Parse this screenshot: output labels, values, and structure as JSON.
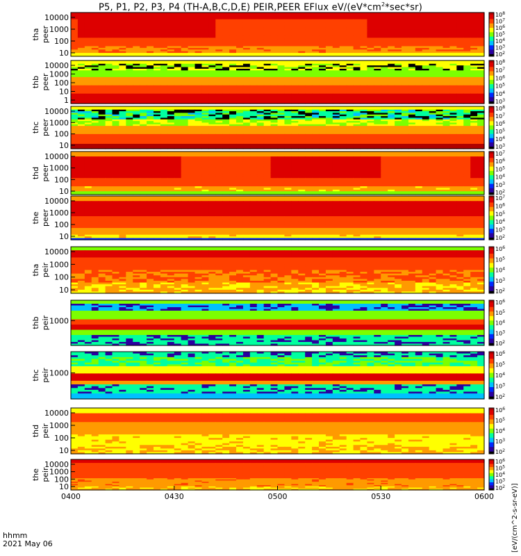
{
  "title": {
    "prefix": "P5, P1, P2, P3, P4 (TH-A,B,C,D,E) PEIR,PEER EFlux eV/(eV*cm",
    "sup": "2",
    "suffix": "*sec*sr)"
  },
  "footer": {
    "line1": "hhmm",
    "line2": "2021 May 06"
  },
  "colors": {
    "colormap": [
      "#000000",
      "#2a00a0",
      "#0028ff",
      "#00c0ff",
      "#00ffa0",
      "#7cff00",
      "#ffff00",
      "#ff9a00",
      "#ff4000",
      "#dd0000",
      "#b00000"
    ]
  },
  "chart_data": {
    "type": "heatmap",
    "x_axis": {
      "ticks": [
        "0400",
        "0430",
        "0500",
        "0530",
        "0600"
      ],
      "label_left": "hhmm",
      "date": "2021 May 06"
    },
    "colorbar_label": "[eV/(cm^2-s-sr-eV)]",
    "panels": [
      {
        "name": "tha_peer",
        "label": [
          "tha",
          "peer"
        ],
        "y_ticks": [
          "10",
          "100",
          "1000",
          "10000"
        ],
        "cbar_ticks": [
          "10^2",
          "10^3",
          "10^4",
          "10^5",
          "10^6",
          "10^7",
          "10^8"
        ],
        "pattern": "peer_a"
      },
      {
        "name": "thb_peer",
        "label": [
          "thb",
          "peer"
        ],
        "y_ticks": [
          "1",
          "10",
          "100",
          "1000",
          "10000"
        ],
        "cbar_ticks": [
          "10^3",
          "10^4",
          "10^5",
          "10^6",
          "10^7",
          "10^8"
        ],
        "pattern": "peer_b"
      },
      {
        "name": "thc_peer",
        "label": [
          "thc",
          "peer"
        ],
        "y_ticks": [
          "10",
          "100",
          "1000",
          "10000"
        ],
        "cbar_ticks": [
          "10^3",
          "10^4",
          "10^5",
          "10^6",
          "10^7",
          "10^8"
        ],
        "pattern": "peer_c"
      },
      {
        "name": "thd_peer",
        "label": [
          "thd",
          "peer"
        ],
        "y_ticks": [
          "10",
          "100",
          "1000",
          "10000"
        ],
        "cbar_ticks": [
          "10^2",
          "10^3",
          "10^4",
          "10^5",
          "10^6",
          "10^7"
        ],
        "pattern": "peer_d"
      },
      {
        "name": "the_peer",
        "label": [
          "the",
          "peer"
        ],
        "y_ticks": [
          "10",
          "100",
          "1000",
          "10000"
        ],
        "cbar_ticks": [
          "10^2",
          "10^3",
          "10^4",
          "10^5",
          "10^6",
          "10^7"
        ],
        "pattern": "peer_e"
      },
      {
        "name": "tha_peir",
        "label": [
          "tha",
          "peir"
        ],
        "y_ticks": [
          "10",
          "100",
          "1000",
          "10000"
        ],
        "cbar_ticks": [
          "10^2",
          "10^3",
          "10^4",
          "10^5",
          "10^6"
        ],
        "pattern": "peir_a"
      },
      {
        "name": "thb_peir",
        "label": [
          "thb",
          "peir"
        ],
        "y_ticks": [
          "1000"
        ],
        "cbar_ticks": [
          "10^2",
          "10^3",
          "10^4",
          "10^5",
          "10^6"
        ],
        "pattern": "peir_b"
      },
      {
        "name": "thc_peir",
        "label": [
          "thc",
          "peir"
        ],
        "y_ticks": [
          "1000"
        ],
        "cbar_ticks": [
          "10^2",
          "10^3",
          "10^4",
          "10^5",
          "10^6"
        ],
        "pattern": "peir_c"
      },
      {
        "name": "thd_peir",
        "label": [
          "thd",
          "peir"
        ],
        "y_ticks": [
          "10",
          "100",
          "1000",
          "10000"
        ],
        "cbar_ticks": [
          "10^2",
          "10^3",
          "10^4",
          "10^5",
          "10^6"
        ],
        "pattern": "peir_d"
      },
      {
        "name": "the_peir",
        "label": [
          "the",
          "peir"
        ],
        "y_ticks": [
          "10",
          "100",
          "1000",
          "10000"
        ],
        "cbar_ticks": [
          "10^2",
          "10^3",
          "10^4",
          "10^5",
          "10^6"
        ],
        "pattern": "peir_e"
      }
    ]
  }
}
